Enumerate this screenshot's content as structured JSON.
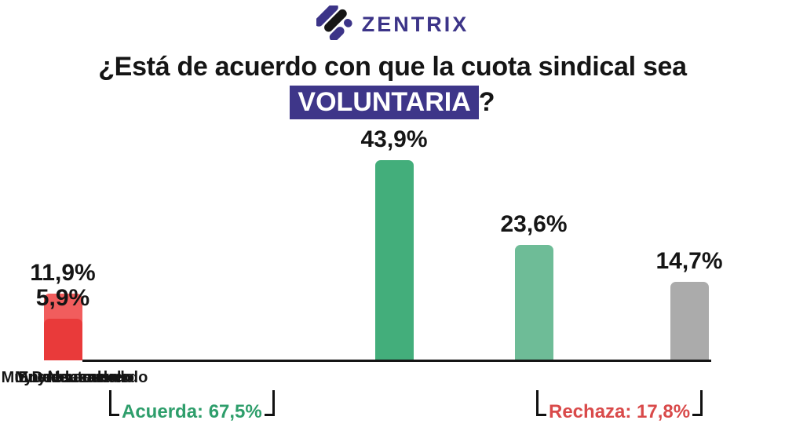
{
  "brand": {
    "name": "ZENTRIX",
    "color": "#3C3488"
  },
  "title": {
    "line1": "¿Está de acuerdo con que la cuota sindical sea",
    "highlight": "VOLUNTARIA",
    "suffix": "?",
    "highlight_bg": "#3E3689",
    "highlight_fg": "#FFFFFF"
  },
  "chart_data": {
    "type": "bar",
    "title": "¿Está de acuerdo con que la cuota sindical sea VOLUNTARIA?",
    "categories": [
      "Muy de acuerdo",
      "De acuerdo",
      "Neutral",
      "En desacuerdo",
      "Muy en desacuerdo"
    ],
    "values": [
      43.9,
      23.6,
      14.7,
      11.9,
      5.9
    ],
    "value_labels": [
      "43,9%",
      "23,6%",
      "14,7%",
      "11,9%",
      "5,9%"
    ],
    "bar_colors": [
      "#43AE7B",
      "#6EBC97",
      "#ABABAB",
      "#F15D5D",
      "#E93A3A"
    ],
    "ylim": [
      0,
      50
    ],
    "grid": false,
    "legend": false,
    "annotations": [
      {
        "label": "Acuerda: 67,5%",
        "value": 67.5,
        "spans": [
          "Muy de acuerdo",
          "De acuerdo"
        ],
        "color": "#2E9E6B"
      },
      {
        "label": "Rechaza: 17,8%",
        "value": 17.8,
        "spans": [
          "En desacuerdo",
          "Muy en desacuerdo"
        ],
        "color": "#D94A4A"
      }
    ]
  }
}
